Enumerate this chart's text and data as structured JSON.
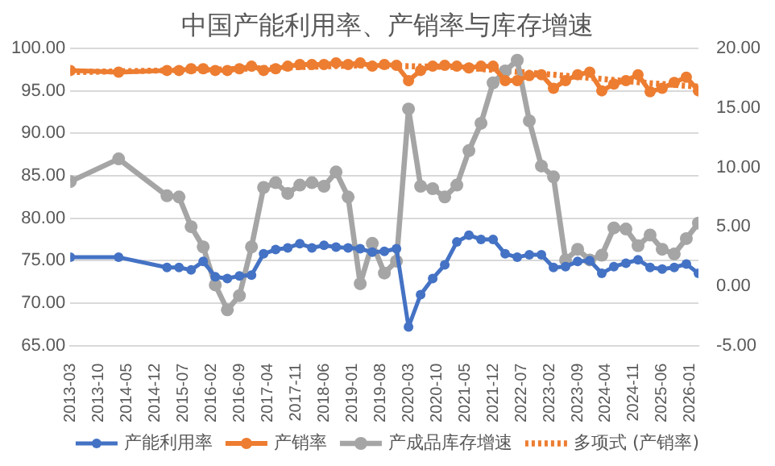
{
  "chart_data": {
    "type": "line",
    "title": "中国产能利用率、产销率与库存增速",
    "x": [
      "2013-03",
      "2014-03",
      "2015-03",
      "2015-06",
      "2015-09",
      "2015-12",
      "2016-03",
      "2016-06",
      "2016-09",
      "2016-12",
      "2017-03",
      "2017-06",
      "2017-09",
      "2017-12",
      "2018-03",
      "2018-06",
      "2018-09",
      "2018-12",
      "2019-03",
      "2019-06",
      "2019-09",
      "2019-12",
      "2020-03",
      "2020-06",
      "2020-09",
      "2020-12",
      "2021-03",
      "2021-06",
      "2021-09",
      "2021-12",
      "2022-03",
      "2022-06",
      "2022-09",
      "2022-12",
      "2023-03",
      "2023-06",
      "2023-09",
      "2023-12",
      "2024-03",
      "2024-06",
      "2024-09",
      "2024-12",
      "2025-03",
      "2025-06",
      "2025-09",
      "2025-12",
      "2026-03"
    ],
    "series": [
      {
        "name": "产能利用率",
        "color": "#4472c4",
        "values": [
          75.4,
          75.4,
          74.2,
          74.2,
          73.9,
          74.9,
          73.1,
          72.9,
          73.2,
          73.3,
          75.8,
          76.3,
          76.5,
          77.0,
          76.5,
          76.8,
          76.6,
          76.5,
          76.4,
          76.0,
          76.1,
          76.4,
          67.2,
          71.0,
          72.9,
          74.5,
          77.2,
          78.0,
          77.5,
          77.5,
          75.8,
          75.4,
          75.7,
          75.7,
          74.2,
          74.3,
          74.9,
          75.0,
          73.5,
          74.3,
          74.7,
          75.1,
          74.2,
          74.0,
          74.2,
          74.6,
          73.5
        ]
      },
      {
        "name": "产销率",
        "color": "#ed7d31",
        "values": [
          97.4,
          97.2,
          97.4,
          97.4,
          97.6,
          97.6,
          97.4,
          97.4,
          97.6,
          97.9,
          97.4,
          97.6,
          97.9,
          98.1,
          98.1,
          98.1,
          98.3,
          98.1,
          98.3,
          97.9,
          98.1,
          98.0,
          96.2,
          97.4,
          97.9,
          98.0,
          97.9,
          97.7,
          97.9,
          97.9,
          96.2,
          96.2,
          96.8,
          96.9,
          95.3,
          96.2,
          96.9,
          97.2,
          95.0,
          95.8,
          96.2,
          96.9,
          94.9,
          95.3,
          96.0,
          96.6,
          95.0
        ]
      },
      {
        "name": "产成品库存增速",
        "color": "#a5a5a5",
        "axis": "y2",
        "values": [
          8.8,
          10.7,
          7.6,
          7.5,
          5.0,
          3.3,
          0.1,
          -2.0,
          -0.8,
          3.3,
          8.3,
          8.7,
          7.8,
          8.5,
          8.7,
          8.4,
          9.6,
          7.5,
          0.2,
          3.6,
          1.1,
          2.1,
          14.9,
          8.4,
          8.2,
          7.5,
          8.5,
          11.4,
          13.7,
          17.1,
          18.1,
          19.0,
          13.9,
          10.1,
          9.2,
          2.2,
          3.1,
          2.2,
          2.6,
          4.9,
          4.8,
          3.4,
          4.3,
          3.1,
          2.7,
          4.0,
          5.3
        ]
      },
      {
        "name": "多项式 (产销率)",
        "color": "#ed7d31",
        "marker": "none",
        "line_style": "dotted",
        "x": [
          "2013-03",
          "2016-03",
          "2019-03",
          "2021-03",
          "2023-03",
          "2025-03",
          "2026-03"
        ],
        "values": [
          97.2,
          97.5,
          98.0,
          97.8,
          96.9,
          95.9,
          95.5
        ]
      }
    ],
    "xlim": [
      "2013-03",
      "2026-03"
    ],
    "xticks": [
      "2013-03",
      "2013-10",
      "2014-05",
      "2014-12",
      "2015-07",
      "2016-02",
      "2016-09",
      "2017-04",
      "2017-11",
      "2018-06",
      "2019-01",
      "2019-08",
      "2020-03",
      "2020-10",
      "2021-05",
      "2021-12",
      "2022-07",
      "2023-02",
      "2023-09",
      "2024-04",
      "2024-11",
      "2025-06",
      "2026-01"
    ],
    "ylim": [
      65,
      100
    ],
    "yticks": [
      {
        "value": 65,
        "label": "65.00"
      },
      {
        "value": 70,
        "label": "70.00"
      },
      {
        "value": 75,
        "label": "75.00"
      },
      {
        "value": 80,
        "label": "80.00"
      },
      {
        "value": 85,
        "label": "85.00"
      },
      {
        "value": 90,
        "label": "90.00"
      },
      {
        "value": 95,
        "label": "95.00"
      },
      {
        "value": 100,
        "label": "100.00"
      }
    ],
    "y2lim": [
      -5,
      20
    ],
    "y2ticks": [
      {
        "value": -5,
        "label": "-5.00"
      },
      {
        "value": 0,
        "label": "0.00"
      },
      {
        "value": 5,
        "label": "5.00"
      },
      {
        "value": 10,
        "label": "10.00"
      },
      {
        "value": 15,
        "label": "15.00"
      },
      {
        "value": 20,
        "label": "20.00"
      }
    ],
    "grid": "y",
    "legend": "bottom",
    "marker": "circle",
    "line_style": "solid"
  }
}
